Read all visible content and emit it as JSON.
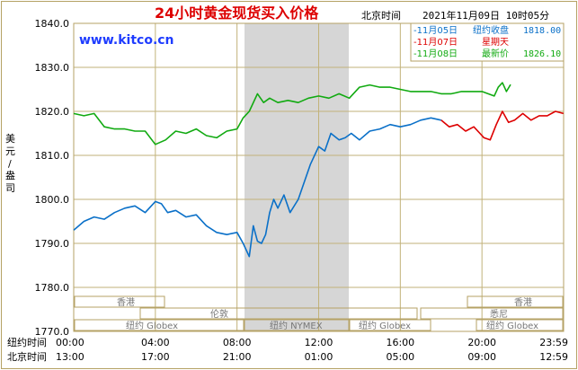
{
  "header": {
    "title": "24小时黄金现货买入价格",
    "location": "北京时间",
    "datetime": "2021年11月09日 10时05分",
    "brand": "www.kitco.cn"
  },
  "legend": [
    {
      "date": "-11月05日",
      "label": "纽约收盘",
      "value": "1818.00",
      "color": "#0a70c8"
    },
    {
      "date": "-11月07日",
      "label": "星期天",
      "value": "",
      "color": "#dd0000"
    },
    {
      "date": "-11月08日",
      "label": "最新价",
      "value": "1826.10",
      "color": "#11aa11"
    }
  ],
  "y_axis_label": [
    "美",
    "元",
    "/",
    "盎",
    "司"
  ],
  "x_rows": [
    {
      "label": "纽约时间",
      "ticks": [
        "00:00",
        "04:00",
        "08:00",
        "12:00",
        "16:00",
        "20:00",
        "23:59"
      ]
    },
    {
      "label": "北京时间",
      "ticks": [
        "13:00",
        "17:00",
        "21:00",
        "01:00",
        "05:00",
        "09:00",
        "12:59"
      ]
    }
  ],
  "markets": {
    "hongkong_left": "香港",
    "hongkong_right": "香港",
    "london": "伦敦",
    "sydney": "悉尼",
    "globex_1": "纽约 Globex",
    "nymex": "纽约 NYMEX",
    "globex_2": "纽约 Globex",
    "globex_3": "纽约 Globex"
  },
  "colors": {
    "frame": "#b5a265",
    "grid": "#c2b27a",
    "highlight": "#d6d6d6",
    "title": "#dd0000",
    "brand": "#1e3cff"
  },
  "chart_data": {
    "type": "line",
    "xlim": [
      0,
      24
    ],
    "ylim": [
      1770,
      1840
    ],
    "yticks": [
      1770,
      1780,
      1790,
      1800,
      1810,
      1820,
      1830,
      1840
    ],
    "series": [
      {
        "name": "11月05日",
        "color": "#0a70c8",
        "x": [
          0,
          0.5,
          1,
          1.5,
          2,
          2.5,
          3,
          3.5,
          4,
          4.3,
          4.6,
          5,
          5.5,
          6,
          6.5,
          7,
          7.5,
          8,
          8.3,
          8.6,
          8.8,
          9.0,
          9.2,
          9.4,
          9.6,
          9.8,
          10,
          10.3,
          10.6,
          11,
          11.3,
          11.6,
          12,
          12.3,
          12.6,
          13,
          13.3,
          13.6,
          14,
          14.5,
          15,
          15.5,
          16,
          16.5,
          17,
          17.5,
          18
        ],
        "y": [
          1793,
          1795,
          1796,
          1795.5,
          1797,
          1798,
          1798.5,
          1797,
          1799.5,
          1799,
          1797,
          1797.5,
          1796,
          1796.5,
          1794,
          1792.5,
          1792,
          1792.5,
          1790,
          1787,
          1794,
          1790.5,
          1790,
          1792,
          1797,
          1800,
          1798,
          1801,
          1797,
          1800,
          1804,
          1808,
          1812,
          1811,
          1815,
          1813.5,
          1814,
          1815,
          1813.5,
          1815.5,
          1816,
          1817,
          1816.5,
          1817,
          1818,
          1818.5,
          1818
        ]
      },
      {
        "name": "11月07日",
        "color": "#dd0000",
        "x": [
          18,
          18.4,
          18.8,
          19.2,
          19.6,
          19.9,
          20.1,
          20.4,
          20.7,
          21,
          21.3,
          21.6,
          22,
          22.4,
          22.8,
          23.2,
          23.6,
          23.99
        ],
        "y": [
          1818,
          1816.5,
          1817,
          1815.5,
          1816.5,
          1815,
          1814,
          1813.5,
          1817,
          1820,
          1817.5,
          1818,
          1819.5,
          1818,
          1819,
          1819,
          1820,
          1819.5
        ]
      },
      {
        "name": "11月08日",
        "color": "#11aa11",
        "x": [
          0,
          0.5,
          1,
          1.5,
          2,
          2.5,
          3,
          3.5,
          4,
          4.5,
          5,
          5.5,
          6,
          6.5,
          7,
          7.5,
          8,
          8.3,
          8.6,
          9,
          9.3,
          9.6,
          10,
          10.5,
          11,
          11.5,
          12,
          12.5,
          13,
          13.5,
          14,
          14.5,
          15,
          15.5,
          16,
          16.5,
          17,
          17.5,
          18,
          18.5,
          19,
          19.5,
          20,
          20.3,
          20.6,
          20.8,
          21.0,
          21.2,
          21.4
        ],
        "y": [
          1819.5,
          1819,
          1819.5,
          1816.5,
          1816,
          1816,
          1815.5,
          1815.5,
          1812.5,
          1813.5,
          1815.5,
          1815,
          1816,
          1814.5,
          1814,
          1815.5,
          1816,
          1818.5,
          1820,
          1824,
          1822,
          1823,
          1822,
          1822.5,
          1822,
          1823,
          1823.5,
          1823,
          1824,
          1823,
          1825.5,
          1826,
          1825.5,
          1825.5,
          1825,
          1824.5,
          1824.5,
          1824.5,
          1824,
          1824,
          1824.5,
          1824.5,
          1824.5,
          1824,
          1823.5,
          1825.5,
          1826.5,
          1824.5,
          1826.1
        ]
      }
    ]
  }
}
